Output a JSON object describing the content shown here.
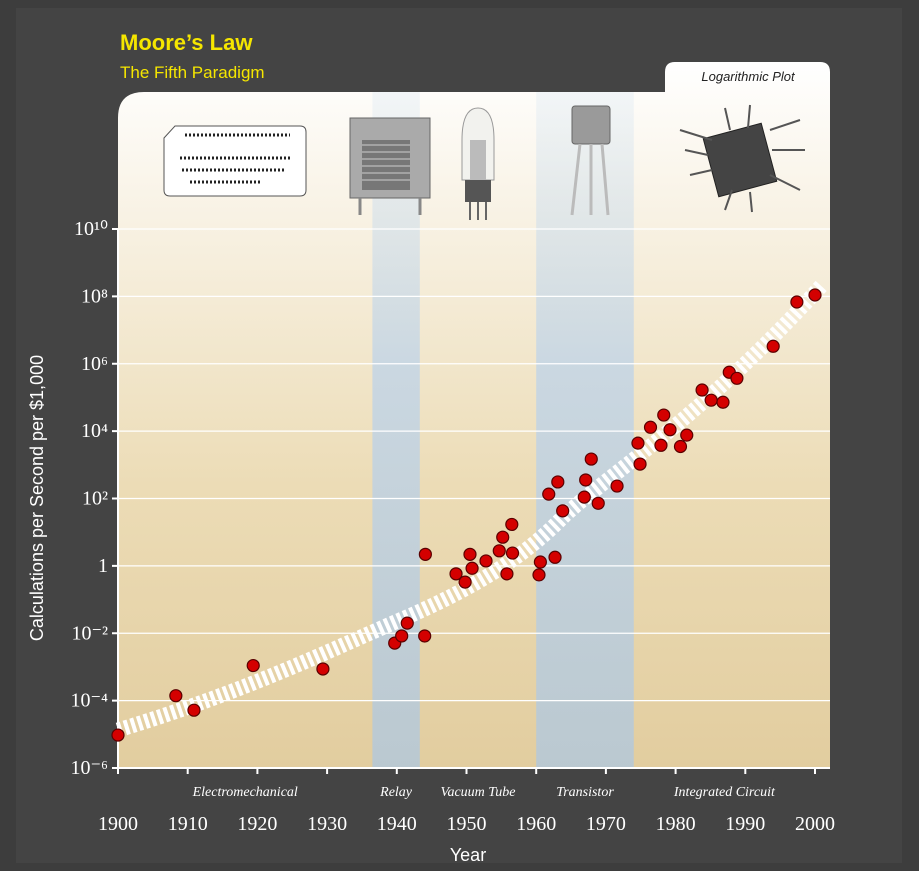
{
  "chart_data": {
    "type": "scatter",
    "title": "Moore’s Law",
    "subtitle": "The Fifth Paradigm",
    "annotation": "Logarithmic Plot",
    "x_label": "Year",
    "y_label": "Calculations per Second per $1,000",
    "x": [
      1900,
      1908.3,
      1910.9,
      1919.4,
      1929.4,
      1939.7,
      1940.7,
      1941.5,
      1944.0,
      1944.1,
      1948.5,
      1949.8,
      1950.5,
      1950.8,
      1952.8,
      1954.7,
      1955.2,
      1955.8,
      1956.6,
      1956.5,
      1960.4,
      1960.6,
      1962.7,
      1961.8,
      1963.1,
      1963.8,
      1967.1,
      1966.9,
      1967.9,
      1968.9,
      1971.6,
      1974.6,
      1974.9,
      1976.4,
      1977.9,
      1978.3,
      1979.2,
      1980.7,
      1981.6,
      1983.8,
      1985.1,
      1986.8,
      1987.7,
      1988.8,
      1994.0,
      1997.4,
      2000.0
    ],
    "values": [
      9.5e-06,
      0.00014,
      5.2e-05,
      0.0011,
      0.00087,
      0.0051,
      0.0083,
      0.02,
      0.0083,
      2.2,
      0.58,
      0.33,
      2.2,
      0.85,
      1.4,
      2.8,
      7.1,
      0.58,
      2.4,
      17,
      0.54,
      1.3,
      1.8,
      135,
      310,
      43,
      355,
      110,
      1480,
      72,
      234,
      4400,
      1050,
      13000,
      3800,
      30000,
      11000,
      3500,
      7600,
      166000,
      83000,
      72000,
      560000,
      370000,
      3300000.0,
      68000000.0,
      110000000.0
    ],
    "color": "#d40000",
    "xlim": [
      1900,
      2000
    ],
    "xticks": [
      1900,
      1910,
      1920,
      1930,
      1940,
      1950,
      1960,
      1970,
      1980,
      1990,
      2000
    ],
    "ylim": [
      1e-06,
      10000000000.0
    ],
    "ylog": true,
    "yticks": [
      {
        "value": 1e-06,
        "label": "10⁻⁶"
      },
      {
        "value": 0.0001,
        "label": "10⁻⁴"
      },
      {
        "value": 0.01,
        "label": "10⁻²"
      },
      1,
      {
        "value": 100,
        "label": "10²"
      },
      {
        "value": 10000.0,
        "label": "10⁴"
      },
      {
        "value": 1000000.0,
        "label": "10⁶"
      },
      {
        "value": 100000000.0,
        "label": "10⁸"
      },
      {
        "value": 10000000000.0,
        "label": "10¹⁰"
      }
    ],
    "grid": true,
    "eras": [
      {
        "label": "Electromechanical",
        "start": 1900,
        "end": 1936.5,
        "highlight": false
      },
      {
        "label": "Relay",
        "start": 1936.5,
        "end": 1943.3,
        "highlight": true
      },
      {
        "label": "Vacuum Tube",
        "start": 1943.3,
        "end": 1960,
        "highlight": false
      },
      {
        "label": "Transistor",
        "start": 1960,
        "end": 1974,
        "highlight": true
      },
      {
        "label": "Integrated Circuit",
        "start": 1974,
        "end": 2000,
        "highlight": false
      }
    ]
  }
}
